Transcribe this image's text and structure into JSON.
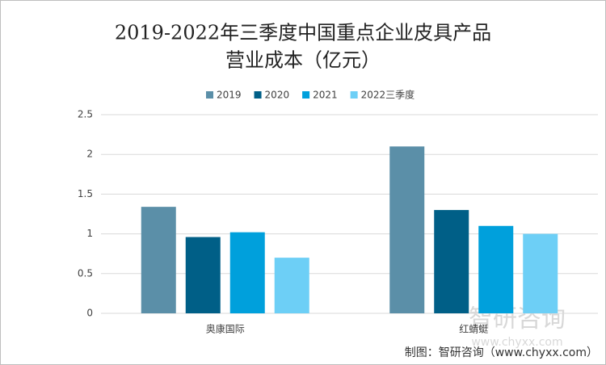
{
  "chart_data": {
    "type": "bar",
    "title": [
      "2019-2022年三季度中国重点企业皮具产品",
      "营业成本（亿元）"
    ],
    "categories": [
      "奥康国际",
      "红蜻蜓"
    ],
    "series": [
      {
        "name": "2019",
        "color": "#5b8fa8",
        "values": [
          1.34,
          2.1
        ]
      },
      {
        "name": "2020",
        "color": "#005f87",
        "values": [
          0.96,
          1.3
        ]
      },
      {
        "name": "2021",
        "color": "#00a0dc",
        "values": [
          1.02,
          1.1
        ]
      },
      {
        "name": "2022三季度",
        "color": "#6dcff6",
        "values": [
          0.7,
          1.0
        ]
      }
    ],
    "ylim": [
      0,
      2.5
    ],
    "yticks": [
      0,
      0.5,
      1,
      1.5,
      2,
      2.5
    ],
    "grid": true,
    "legend": "top",
    "source": "制图：智研咨询（www.chyxx.com）",
    "watermark": [
      "智研咨询",
      "www.chyxx.com"
    ]
  }
}
